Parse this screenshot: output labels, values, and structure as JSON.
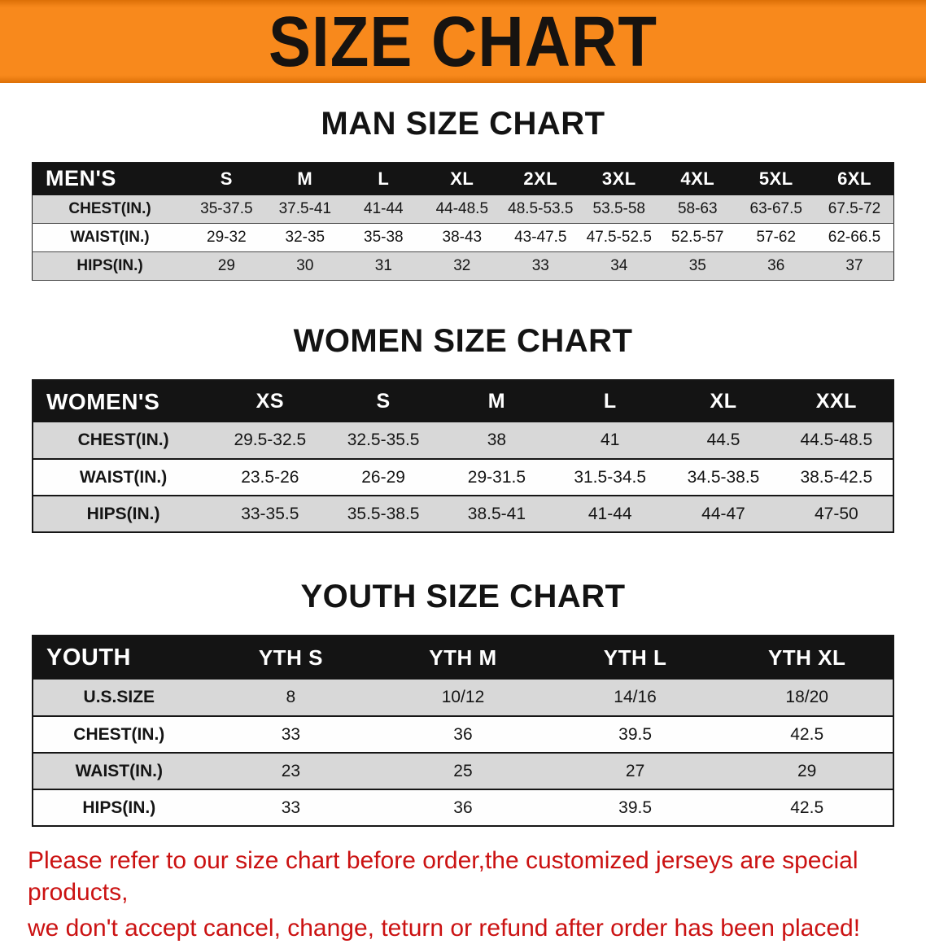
{
  "banner": {
    "title": "SIZE CHART",
    "bg_color": "#F8891C",
    "edge_color": "#DD7007"
  },
  "sections": [
    {
      "id": "men",
      "heading": "MAN SIZE CHART",
      "header": [
        "MEN'S",
        "S",
        "M",
        "L",
        "XL",
        "2XL",
        "3XL",
        "4XL",
        "5XL",
        "6XL"
      ],
      "rows": [
        {
          "label": "CHEST(IN.)",
          "values": [
            "35-37.5",
            "37.5-41",
            "41-44",
            "44-48.5",
            "48.5-53.5",
            "53.5-58",
            "58-63",
            "63-67.5",
            "67.5-72"
          ]
        },
        {
          "label": "WAIST(IN.)",
          "values": [
            "29-32",
            "32-35",
            "35-38",
            "38-43",
            "43-47.5",
            "47.5-52.5",
            "52.5-57",
            "57-62",
            "62-66.5"
          ]
        },
        {
          "label": "HIPS(IN.)",
          "values": [
            "29",
            "30",
            "31",
            "32",
            "33",
            "34",
            "35",
            "36",
            "37"
          ]
        }
      ]
    },
    {
      "id": "women",
      "heading": "WOMEN SIZE CHART",
      "header": [
        "WOMEN'S",
        "XS",
        "S",
        "M",
        "L",
        "XL",
        "XXL"
      ],
      "rows": [
        {
          "label": "CHEST(IN.)",
          "values": [
            "29.5-32.5",
            "32.5-35.5",
            "38",
            "41",
            "44.5",
            "44.5-48.5"
          ]
        },
        {
          "label": "WAIST(IN.)",
          "values": [
            "23.5-26",
            "26-29",
            "29-31.5",
            "31.5-34.5",
            "34.5-38.5",
            "38.5-42.5"
          ]
        },
        {
          "label": "HIPS(IN.)",
          "values": [
            "33-35.5",
            "35.5-38.5",
            "38.5-41",
            "41-44",
            "44-47",
            "47-50"
          ]
        }
      ]
    },
    {
      "id": "youth",
      "heading": "YOUTH SIZE CHART",
      "header": [
        "YOUTH",
        "YTH S",
        "YTH M",
        "YTH L",
        "YTH XL"
      ],
      "rows": [
        {
          "label": "U.S.SIZE",
          "values": [
            "8",
            "10/12",
            "14/16",
            "18/20"
          ]
        },
        {
          "label": "CHEST(IN.)",
          "values": [
            "33",
            "36",
            "39.5",
            "42.5"
          ]
        },
        {
          "label": "WAIST(IN.)",
          "values": [
            "23",
            "25",
            "27",
            "29"
          ]
        },
        {
          "label": "HIPS(IN.)",
          "values": [
            "33",
            "36",
            "39.5",
            "42.5"
          ]
        }
      ]
    }
  ],
  "footer": {
    "color": "#CB1212",
    "lines": [
      "Please refer to our size chart before order,the customized jerseys are special products,",
      "we don't accept cancel, change, teturn or refund after order has been placed!"
    ]
  }
}
